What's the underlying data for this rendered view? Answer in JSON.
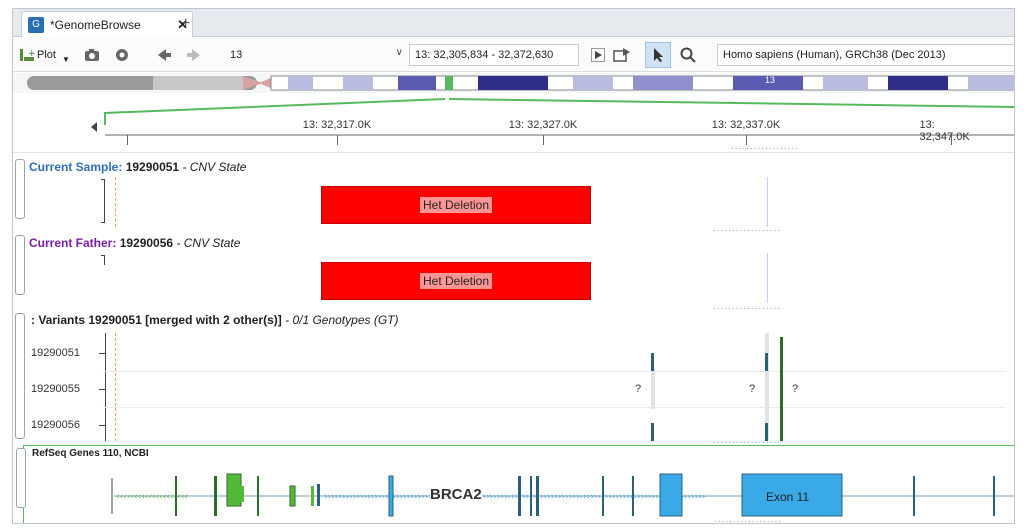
{
  "tab": {
    "title": "*GenomeBrowse",
    "close": "✕",
    "add": "+"
  },
  "toolbar": {
    "plot_label": "Plot",
    "chromosome": "13",
    "location": "13: 32,305,834 - 32,372,630",
    "genome": "Homo sapiens (Human), GRCh38 (Dec 2013)"
  },
  "chromosome": {
    "band_label": "13"
  },
  "ruler": {
    "ticks": [
      "13: 32,317.0K",
      "13: 32,327.0K",
      "13: 32,337.0K",
      "13: 32,347.0K"
    ]
  },
  "tracks": {
    "sample": {
      "prefix": "Current Sample:",
      "id": "19290051",
      "suffix": "- CNV State",
      "cnv_label": "Het Deletion"
    },
    "father": {
      "prefix": "Current Father:",
      "id": "19290056",
      "suffix": "- CNV State",
      "cnv_label": "Het Deletion"
    },
    "variants": {
      "title": ": Variants 19290051 [merged with 2 other(s)]",
      "suffix": "- 0/1 Genotypes (GT)",
      "samples": [
        "19290051",
        "19290055",
        "19290056"
      ],
      "marks": [
        "?",
        "?",
        "?"
      ]
    },
    "genes": {
      "title": "RefSeq Genes 110, NCBI",
      "gene": "BRCA2",
      "exon_label": "Exon 11"
    }
  },
  "colors": {
    "sample_blue": "#2f6fb6",
    "father_purple": "#7a1fa2",
    "cnv_red": "#ff0000",
    "exon_blue": "#3aa9e8",
    "exon_green": "#55b83a",
    "track_green": "#57b95d"
  }
}
